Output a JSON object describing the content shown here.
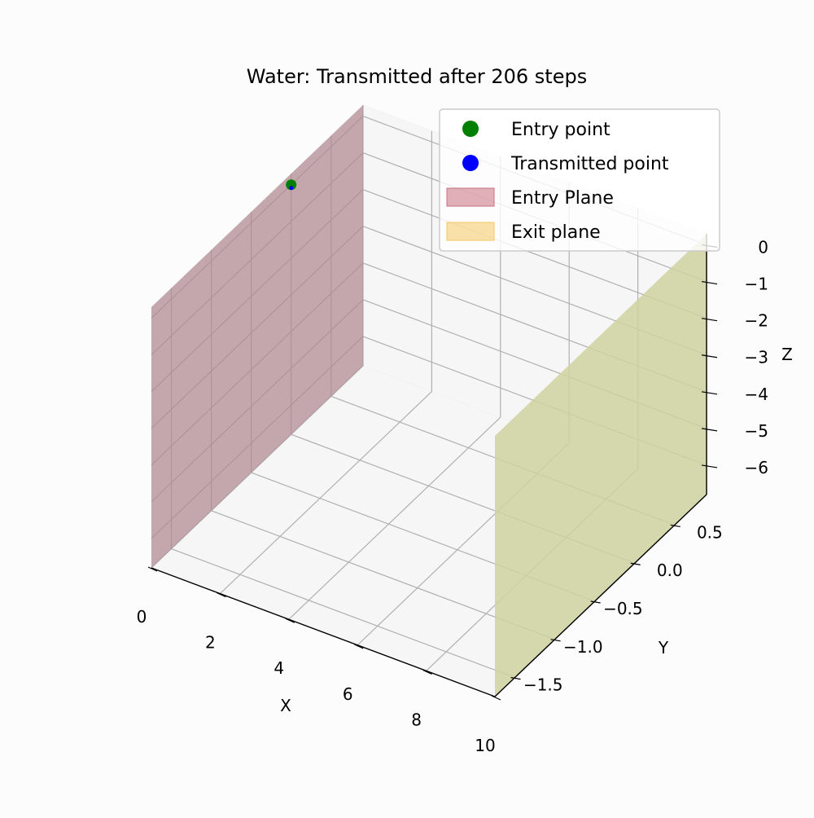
{
  "chart_data": {
    "type": "scatter",
    "projection": "3d",
    "title": "Water: Transmitted after 206 steps",
    "xlabel": "X",
    "ylabel": "Y",
    "zlabel": "Z",
    "xlim": [
      0,
      10
    ],
    "ylim": [
      -1.75,
      0.9
    ],
    "zlim": [
      -6.8,
      0.3
    ],
    "xticks": [
      0,
      2,
      4,
      6,
      8,
      10
    ],
    "yticks": [
      -1.5,
      -1.0,
      -0.5,
      0.0,
      0.5
    ],
    "zticks": [
      -6,
      -5,
      -4,
      -3,
      -2,
      -1,
      0
    ],
    "xtick_labels": [
      "0",
      "2",
      "4",
      "6",
      "8",
      "10"
    ],
    "ytick_labels": [
      "−1.5",
      "−1.0",
      "−0.5",
      "0.0",
      "0.5"
    ],
    "ztick_labels": [
      "−6",
      "−5",
      "−4",
      "−3",
      "−2",
      "−1",
      "0"
    ],
    "grid": true,
    "legend_position": "top-right",
    "legend": [
      {
        "label": "Entry point",
        "kind": "marker",
        "color": "#008000"
      },
      {
        "label": "Transmitted point",
        "kind": "marker",
        "color": "#0000ff"
      },
      {
        "label": "Entry Plane",
        "kind": "patch",
        "color": "#c87080"
      },
      {
        "label": "Exit plane",
        "kind": "patch",
        "color": "#f5c862"
      }
    ],
    "series": [
      {
        "name": "Entry point",
        "color": "#008000",
        "points": [
          {
            "x": 0,
            "y": 0,
            "z": 0
          }
        ]
      },
      {
        "name": "Transmitted point",
        "color": "#0000ff",
        "points": [
          {
            "x": 0.05,
            "y": -0.02,
            "z": -0.03
          }
        ]
      }
    ],
    "planes": [
      {
        "name": "Entry Plane",
        "axis": "x",
        "value": 0,
        "color": "#b08890",
        "opacity": 0.72
      },
      {
        "name": "Exit plane",
        "axis": "x",
        "value": 10,
        "color": "#cfd2a0",
        "opacity": 0.85
      }
    ]
  }
}
